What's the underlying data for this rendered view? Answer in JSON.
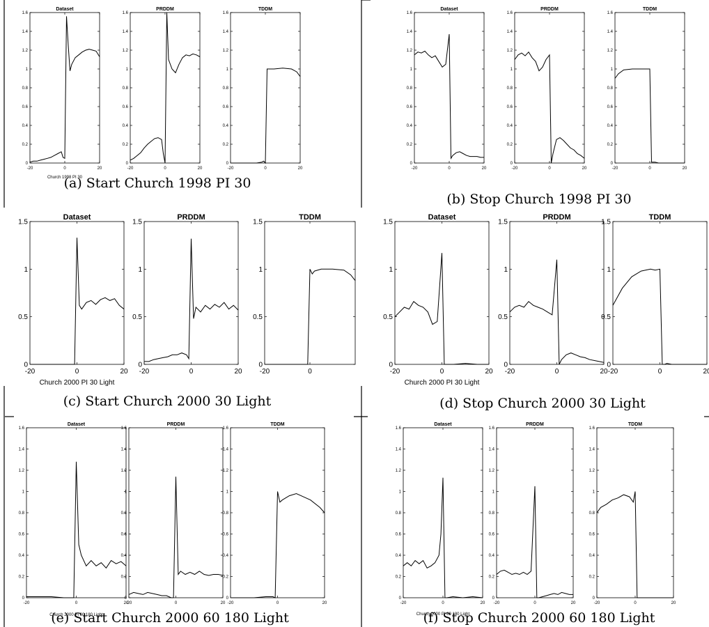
{
  "figure": {
    "panels": [
      {
        "caption": "(a) Start Church 1998 PI 30",
        "xlabel": "Church 1998 PI 30",
        "yticks": [
          "0",
          "0.2",
          "0.4",
          "0.6",
          "0.8",
          "1",
          "1.2",
          "1.4",
          "1.6"
        ],
        "ylim": [
          0,
          1.6
        ],
        "subplots": [
          {
            "title": "Dataset",
            "xlim": [
              -20,
              20
            ],
            "xticks": [
              "-20",
              "0",
              "20"
            ],
            "x": [
              -20,
              -18,
              -16,
              -14,
              -12,
              -10,
              -8,
              -6,
              -4,
              -2,
              -1,
              0,
              1,
              2,
              3,
              4,
              6,
              8,
              10,
              12,
              14,
              16,
              18,
              20
            ],
            "y": [
              0.01,
              0.02,
              0.02,
              0.03,
              0.04,
              0.05,
              0.06,
              0.08,
              0.1,
              0.12,
              0.06,
              0.05,
              1.56,
              1.25,
              0.98,
              1.05,
              1.12,
              1.15,
              1.18,
              1.2,
              1.21,
              1.2,
              1.19,
              1.13
            ]
          },
          {
            "title": "PRDDM",
            "xlim": [
              -20,
              20
            ],
            "xticks": [
              "-20",
              "0",
              "20"
            ],
            "x": [
              -20,
              -18,
              -16,
              -14,
              -12,
              -10,
              -8,
              -6,
              -4,
              -2,
              -1,
              0,
              1,
              2,
              4,
              6,
              8,
              10,
              12,
              14,
              16,
              18,
              20
            ],
            "y": [
              0.03,
              0.05,
              0.08,
              0.11,
              0.16,
              0.2,
              0.23,
              0.26,
              0.27,
              0.25,
              0.1,
              0.0,
              1.6,
              1.1,
              1.0,
              0.96,
              1.05,
              1.12,
              1.15,
              1.14,
              1.16,
              1.15,
              1.13
            ]
          },
          {
            "title": "TDDM",
            "xlim": [
              -20,
              20
            ],
            "xticks": [
              "-20",
              "0",
              "20"
            ],
            "x": [
              -20,
              -15,
              -10,
              -5,
              -2,
              -1,
              0,
              1,
              5,
              10,
              15,
              18,
              20
            ],
            "y": [
              0,
              0,
              0,
              0,
              0.01,
              0.02,
              0,
              1.0,
              1.0,
              1.01,
              1.0,
              0.97,
              0.92
            ]
          }
        ]
      },
      {
        "caption": "(b) Stop Church 1998 PI 30",
        "xlabel": "",
        "yticks": [
          "0",
          "0.2",
          "0.4",
          "0.6",
          "0.8",
          "1",
          "1.2",
          "1.4",
          "1.6"
        ],
        "ylim": [
          0,
          1.6
        ],
        "subplots": [
          {
            "title": "Dataset",
            "xlim": [
              -20,
              20
            ],
            "xticks": [
              "-20",
              "0",
              "20"
            ],
            "x": [
              -20,
              -18,
              -16,
              -14,
              -12,
              -10,
              -8,
              -6,
              -4,
              -2,
              0,
              1,
              2,
              4,
              6,
              8,
              10,
              12,
              14,
              16,
              18,
              20
            ],
            "y": [
              1.15,
              1.18,
              1.17,
              1.19,
              1.15,
              1.12,
              1.14,
              1.08,
              1.02,
              1.05,
              1.37,
              0.05,
              0.08,
              0.11,
              0.12,
              0.1,
              0.08,
              0.07,
              0.07,
              0.07,
              0.06,
              0.06
            ]
          },
          {
            "title": "PRDDM",
            "xlim": [
              -20,
              20
            ],
            "xticks": [
              "-20",
              "0",
              "20"
            ],
            "x": [
              -20,
              -18,
              -16,
              -14,
              -12,
              -10,
              -8,
              -6,
              -4,
              -2,
              0,
              1,
              2,
              4,
              6,
              8,
              10,
              12,
              14,
              16,
              18,
              20
            ],
            "y": [
              1.1,
              1.15,
              1.17,
              1.14,
              1.18,
              1.12,
              1.08,
              0.98,
              1.02,
              1.1,
              1.15,
              0.0,
              0.1,
              0.25,
              0.27,
              0.24,
              0.2,
              0.16,
              0.14,
              0.1,
              0.08,
              0.05
            ]
          },
          {
            "title": "TDDM",
            "xlim": [
              -20,
              20
            ],
            "xticks": [
              "-20",
              "0",
              "20"
            ],
            "x": [
              -20,
              -18,
              -15,
              -10,
              -5,
              0,
              1,
              2,
              3,
              5,
              10,
              15,
              20
            ],
            "y": [
              0.9,
              0.95,
              0.99,
              1.0,
              1.0,
              1.0,
              0.01,
              0.01,
              0.01,
              0.0,
              0,
              0,
              0
            ]
          }
        ]
      },
      {
        "caption": "(c) Start Church 2000 30 Light",
        "xlabel": "Church 2000 PI 30 Light",
        "yticks": [
          "0",
          "0.5",
          "1",
          "1.5"
        ],
        "ylim": [
          0,
          1.5
        ],
        "subplots": [
          {
            "title": "Dataset",
            "xlim": [
              -20,
              20
            ],
            "xticks": [
              "-20",
              "0",
              "20"
            ],
            "x": [
              -20,
              -15,
              -10,
              -5,
              -2,
              -1,
              0,
              1,
              2,
              4,
              6,
              8,
              10,
              12,
              14,
              16,
              18,
              20
            ],
            "y": [
              0,
              0,
              0,
              0,
              0,
              0,
              1.33,
              0.62,
              0.58,
              0.65,
              0.67,
              0.63,
              0.68,
              0.7,
              0.67,
              0.69,
              0.62,
              0.58
            ]
          },
          {
            "title": "PRDDM",
            "xlim": [
              -20,
              20
            ],
            "xticks": [
              "-20",
              "0",
              "20"
            ],
            "x": [
              -20,
              -18,
              -16,
              -14,
              -12,
              -10,
              -8,
              -6,
              -4,
              -2,
              -1,
              0,
              1,
              2,
              4,
              6,
              8,
              10,
              12,
              14,
              16,
              18,
              20
            ],
            "y": [
              0.03,
              0.03,
              0.05,
              0.06,
              0.07,
              0.08,
              0.1,
              0.1,
              0.12,
              0.1,
              0.06,
              1.32,
              0.48,
              0.6,
              0.55,
              0.62,
              0.58,
              0.63,
              0.6,
              0.65,
              0.58,
              0.62,
              0.57
            ]
          },
          {
            "title": "TDDM",
            "xlim": [
              -20,
              20
            ],
            "xticks": [
              "-20",
              "0"
            ],
            "x": [
              -20,
              -10,
              -5,
              -1,
              0,
              1,
              2,
              5,
              10,
              15,
              18,
              20
            ],
            "y": [
              0,
              0,
              0,
              0,
              1.0,
              0.95,
              0.98,
              1.0,
              1.0,
              0.99,
              0.94,
              0.88
            ]
          }
        ]
      },
      {
        "caption": "(d) Stop Church 2000 30 Light",
        "xlabel": "Church 2000 PI 30 Light",
        "yticks": [
          "0",
          "0.5",
          "1",
          "1.5"
        ],
        "ylim": [
          0,
          1.5
        ],
        "subplots": [
          {
            "title": "Dataset",
            "xlim": [
              -20,
              20
            ],
            "xticks": [
              "-20",
              "0",
              "20"
            ],
            "x": [
              -20,
              -18,
              -16,
              -14,
              -12,
              -10,
              -8,
              -6,
              -4,
              -2,
              0,
              1,
              2,
              5,
              10,
              15,
              20
            ],
            "y": [
              0.5,
              0.55,
              0.6,
              0.58,
              0.66,
              0.62,
              0.6,
              0.55,
              0.42,
              0.45,
              1.17,
              0.0,
              0.0,
              0.0,
              0.01,
              0.0,
              0.0
            ]
          },
          {
            "title": "PRDDM",
            "xlim": [
              -20,
              20
            ],
            "xticks": [
              "-20",
              "0",
              "20"
            ],
            "x": [
              -20,
              -18,
              -16,
              -14,
              -12,
              -10,
              -8,
              -6,
              -4,
              -2,
              0,
              1,
              2,
              4,
              6,
              8,
              10,
              12,
              14,
              16,
              18,
              20
            ],
            "y": [
              0.55,
              0.6,
              0.62,
              0.6,
              0.66,
              0.62,
              0.6,
              0.58,
              0.55,
              0.52,
              1.1,
              0.0,
              0.05,
              0.1,
              0.12,
              0.1,
              0.08,
              0.07,
              0.05,
              0.04,
              0.03,
              0.02
            ]
          },
          {
            "title": "TDDM",
            "xlim": [
              -20,
              20
            ],
            "xticks": [
              "-20",
              "0",
              "20"
            ],
            "x": [
              -20,
              -16,
              -12,
              -8,
              -4,
              -2,
              0,
              1,
              2,
              3,
              5,
              10,
              20
            ],
            "y": [
              0.62,
              0.8,
              0.92,
              0.98,
              1.0,
              0.99,
              1.0,
              0.0,
              0.0,
              0.01,
              0.0,
              0,
              0
            ]
          }
        ]
      },
      {
        "caption": "(e) Start Church 2000 60 180 Light",
        "xlabel": "Church 2000 PI 60 180 Light",
        "yticks": [
          "0",
          "0.2",
          "0.4",
          "0.6",
          "0.8",
          "1",
          "1.2",
          "1.4",
          "1.6"
        ],
        "ylim": [
          0,
          1.6
        ],
        "subplots": [
          {
            "title": "Dataset",
            "xlim": [
              -20,
              20
            ],
            "xticks": [
              "-20",
              "0",
              "20"
            ],
            "x": [
              -20,
              -15,
              -10,
              -5,
              -2,
              -1,
              0,
              1,
              2,
              4,
              6,
              8,
              10,
              12,
              14,
              16,
              18,
              20
            ],
            "y": [
              0.01,
              0.01,
              0.01,
              0.0,
              0.0,
              0.0,
              1.28,
              0.5,
              0.4,
              0.3,
              0.35,
              0.3,
              0.33,
              0.28,
              0.35,
              0.32,
              0.34,
              0.3
            ]
          },
          {
            "title": "PRDDM",
            "xlim": [
              -20,
              20
            ],
            "xticks": [
              "-20",
              "0",
              "20"
            ],
            "x": [
              -20,
              -18,
              -16,
              -14,
              -12,
              -10,
              -8,
              -6,
              -4,
              -2,
              -1,
              0,
              1,
              2,
              4,
              6,
              8,
              10,
              12,
              14,
              16,
              18,
              20
            ],
            "y": [
              0.03,
              0.05,
              0.04,
              0.03,
              0.05,
              0.04,
              0.03,
              0.02,
              0.02,
              0.0,
              0.0,
              1.14,
              0.22,
              0.25,
              0.22,
              0.24,
              0.22,
              0.25,
              0.22,
              0.21,
              0.22,
              0.22,
              0.21
            ]
          },
          {
            "title": "TDDM",
            "xlim": [
              -20,
              20
            ],
            "xticks": [
              "-20",
              "0",
              "20"
            ],
            "x": [
              -20,
              -10,
              -5,
              -2,
              -1,
              0,
              1,
              2,
              5,
              8,
              10,
              14,
              18,
              20
            ],
            "y": [
              0,
              0,
              0.01,
              0.01,
              0,
              1.0,
              0.9,
              0.92,
              0.96,
              0.98,
              0.96,
              0.92,
              0.85,
              0.8
            ]
          }
        ]
      },
      {
        "caption": "(f) Stop Church 2000 60 180 Light",
        "xlabel": "Church 2000 PI 60 180 Light",
        "yticks": [
          "0",
          "0.2",
          "0.4",
          "0.6",
          "0.8",
          "1",
          "1.2",
          "1.4",
          "1.6"
        ],
        "ylim": [
          0,
          1.6
        ],
        "subplots": [
          {
            "title": "Dataset",
            "xlim": [
              -20,
              20
            ],
            "xticks": [
              "-20",
              "0",
              "20"
            ],
            "x": [
              -20,
              -18,
              -16,
              -14,
              -12,
              -10,
              -8,
              -6,
              -4,
              -2,
              -1,
              0,
              1,
              2,
              5,
              10,
              15,
              20
            ],
            "y": [
              0.3,
              0.33,
              0.3,
              0.35,
              0.32,
              0.35,
              0.28,
              0.3,
              0.33,
              0.4,
              0.6,
              1.13,
              0.0,
              0.0,
              0.01,
              0.0,
              0.01,
              0.0
            ]
          },
          {
            "title": "PRDDM",
            "xlim": [
              -20,
              20
            ],
            "xticks": [
              "-20",
              "0",
              "20"
            ],
            "x": [
              -20,
              -18,
              -16,
              -14,
              -12,
              -10,
              -8,
              -6,
              -4,
              -2,
              0,
              1,
              2,
              4,
              6,
              8,
              10,
              12,
              14,
              16,
              18,
              20
            ],
            "y": [
              0.22,
              0.25,
              0.26,
              0.24,
              0.22,
              0.23,
              0.22,
              0.24,
              0.22,
              0.25,
              1.05,
              0.0,
              0.0,
              0.01,
              0.02,
              0.03,
              0.04,
              0.03,
              0.05,
              0.04,
              0.03,
              0.03
            ]
          },
          {
            "title": "TDDM",
            "xlim": [
              -20,
              20
            ],
            "xticks": [
              "-20",
              "0",
              "20"
            ],
            "x": [
              -20,
              -18,
              -15,
              -12,
              -9,
              -6,
              -3,
              -1,
              0,
              1,
              2,
              5,
              10,
              20
            ],
            "y": [
              0.8,
              0.85,
              0.88,
              0.92,
              0.94,
              0.97,
              0.95,
              0.9,
              1.0,
              0.0,
              0.0,
              0.0,
              0,
              0
            ]
          }
        ]
      }
    ]
  }
}
